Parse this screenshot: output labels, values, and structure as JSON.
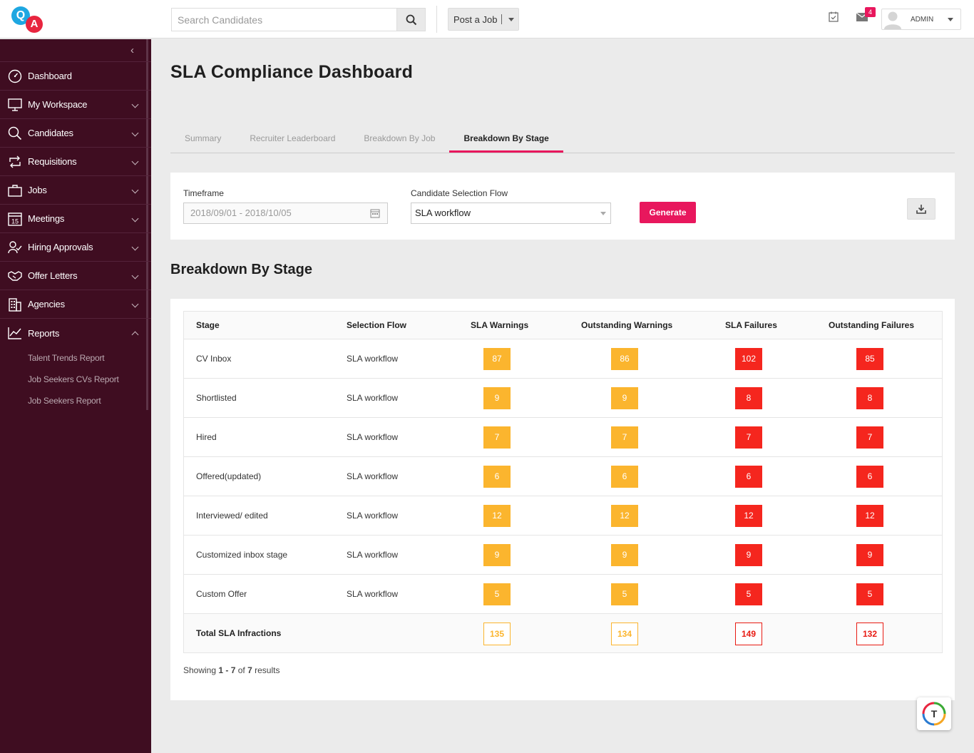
{
  "app": {
    "logo_q": "Q",
    "logo_a": "A"
  },
  "topbar": {
    "search_placeholder": "Search Candidates",
    "post_job_label": "Post a Job",
    "mail_badge": "4",
    "user_name": "ADMIN"
  },
  "sidebar": {
    "items": [
      {
        "label": "Dashboard",
        "icon": "dashboard-icon"
      },
      {
        "label": "My Workspace",
        "icon": "monitor-icon"
      },
      {
        "label": "Candidates",
        "icon": "search-icon"
      },
      {
        "label": "Requisitions",
        "icon": "swap-icon"
      },
      {
        "label": "Jobs",
        "icon": "briefcase-icon"
      },
      {
        "label": "Meetings",
        "icon": "calendar-icon",
        "icon_text": "15"
      },
      {
        "label": "Hiring Approvals",
        "icon": "user-check-icon"
      },
      {
        "label": "Offer Letters",
        "icon": "handshake-icon"
      },
      {
        "label": "Agencies",
        "icon": "building-icon"
      },
      {
        "label": "Reports",
        "icon": "chart-icon"
      }
    ],
    "report_subitems": [
      "Talent Trends Report",
      "Job Seekers CVs Report",
      "Job Seekers Report"
    ]
  },
  "main": {
    "title": "SLA Compliance Dashboard",
    "tabs": [
      "Summary",
      "Recruiter Leaderboard",
      "Breakdown By Job",
      "Breakdown By Stage"
    ],
    "active_tab": 3,
    "filters": {
      "timeframe_label": "Timeframe",
      "timeframe_value": "2018/09/01 - 2018/10/05",
      "flow_label": "Candidate Selection Flow",
      "flow_value": "SLA workflow",
      "generate_label": "Generate"
    },
    "section_title": "Breakdown By Stage",
    "table": {
      "headers": [
        "Stage",
        "Selection Flow",
        "SLA Warnings",
        "Outstanding Warnings",
        "SLA Failures",
        "Outstanding Failures"
      ],
      "rows": [
        {
          "stage": "CV Inbox",
          "flow": "SLA workflow",
          "w": "87",
          "ow": "86",
          "f": "102",
          "of": "85"
        },
        {
          "stage": "Shortlisted",
          "flow": "SLA workflow",
          "w": "9",
          "ow": "9",
          "f": "8",
          "of": "8"
        },
        {
          "stage": "Hired",
          "flow": "SLA workflow",
          "w": "7",
          "ow": "7",
          "f": "7",
          "of": "7"
        },
        {
          "stage": "Offered(updated)",
          "flow": "SLA workflow",
          "w": "6",
          "ow": "6",
          "f": "6",
          "of": "6"
        },
        {
          "stage": "Interviewed/ edited",
          "flow": "SLA workflow",
          "w": "12",
          "ow": "12",
          "f": "12",
          "of": "12"
        },
        {
          "stage": "Customized inbox stage",
          "flow": "SLA workflow",
          "w": "9",
          "ow": "9",
          "f": "9",
          "of": "9"
        },
        {
          "stage": "Custom Offer",
          "flow": "SLA workflow",
          "w": "5",
          "ow": "5",
          "f": "5",
          "of": "5"
        }
      ],
      "total": {
        "label": "Total SLA Infractions",
        "w": "135",
        "ow": "134",
        "f": "149",
        "of": "132"
      }
    },
    "showing": {
      "prefix": "Showing ",
      "range": "1 - 7",
      "mid": " of ",
      "count": "7",
      "suffix": " results"
    }
  },
  "fab": {
    "letter": "T"
  },
  "colors": {
    "accent": "#e8175d",
    "sidebar": "#3f0d21",
    "warning": "#fbb52e",
    "failure": "#f5261e"
  }
}
